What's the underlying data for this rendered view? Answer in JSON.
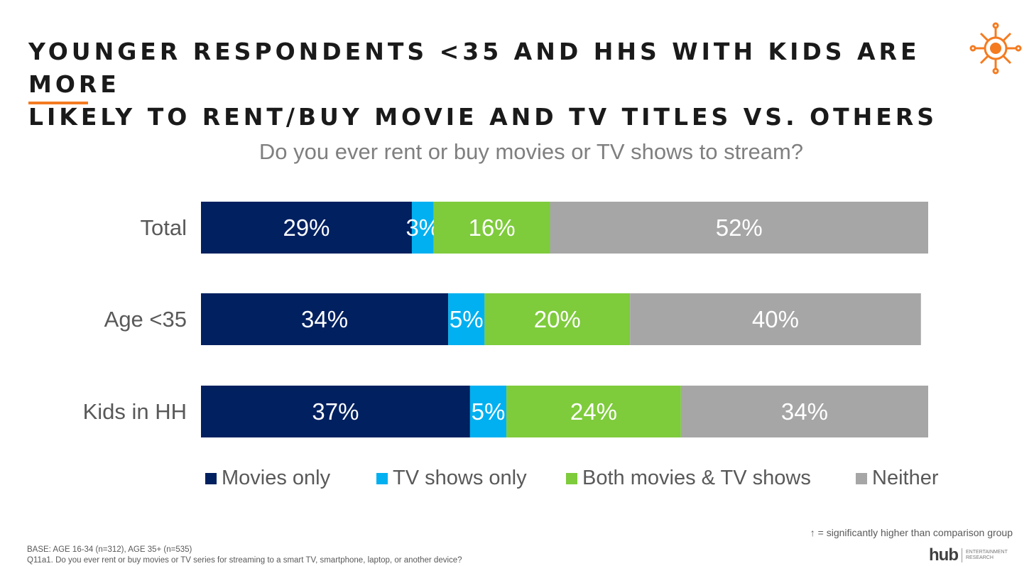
{
  "slide": {
    "title_line1": "YOUNGER RESPONDENTS <35 AND HHS WITH KIDS ARE MORE",
    "title_line2": "LIKELY TO RENT/BUY MOVIE AND TV TITLES VS. OTHERS",
    "question": "Do you ever rent or buy movies or TV shows to stream?",
    "sig_note": "↑ = significantly higher than comparison group",
    "base_line1": "BASE: AGE 16-34 (n=312), AGE 35+ (n=535)",
    "base_line2": "Q11a1. Do you ever rent or buy movies or TV series for streaming to a smart TV, smartphone, laptop, or another device?",
    "brand": "hub",
    "brand_sub1": "ENTERTAINMENT",
    "brand_sub2": "RESEARCH",
    "accent_color": "#f47b20"
  },
  "chart_data": {
    "type": "bar",
    "orientation": "horizontal-stacked-100",
    "title": "Do you ever rent or buy movies or TV shows to stream?",
    "categories": [
      "Total",
      "Age <35",
      "Kids in HH"
    ],
    "series": [
      {
        "name": "Movies only",
        "color": "#002060",
        "values": [
          29,
          34,
          37
        ]
      },
      {
        "name": "TV shows only",
        "color": "#00b0f0",
        "values": [
          3,
          5,
          5
        ]
      },
      {
        "name": "Both movies & TV shows",
        "color": "#7ecb3c",
        "values": [
          16,
          20,
          24
        ]
      },
      {
        "name": "Neither",
        "color": "#a6a6a6",
        "values": [
          52,
          40,
          34
        ]
      }
    ],
    "value_suffix": "%",
    "xlim": [
      0,
      100
    ],
    "legend": "bottom"
  }
}
